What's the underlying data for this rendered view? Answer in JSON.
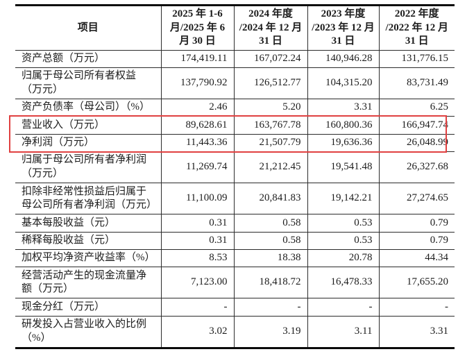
{
  "table": {
    "columns": [
      {
        "id": "item",
        "label": "项目"
      },
      {
        "id": "p2025h1",
        "label": "2025 年 1-6\n月/2025 年 6\n月 30 日"
      },
      {
        "id": "fy2024",
        "label": "2024 年度\n/2024 年 12 月\n31 日"
      },
      {
        "id": "fy2023",
        "label": "2023 年度\n/2023 年 12 月\n31 日"
      },
      {
        "id": "fy2022",
        "label": "2022 年度\n/2022 年 12 月\n31 日"
      }
    ],
    "rows": [
      {
        "item": "资产总额（万元）",
        "values": [
          "174,419.11",
          "167,072.24",
          "140,946.28",
          "131,776.15"
        ],
        "highlighted": false
      },
      {
        "item": "归属于母公司所有者权益（万元）",
        "values": [
          "137,790.92",
          "126,512.77",
          "104,315.20",
          "83,731.49"
        ],
        "highlighted": false
      },
      {
        "item": "资产负债率（母公司）（%）",
        "values": [
          "2.46",
          "5.20",
          "3.31",
          "6.25"
        ],
        "highlighted": false
      },
      {
        "item": "营业收入（万元）",
        "values": [
          "89,628.61",
          "163,767.78",
          "160,800.36",
          "166,947.74"
        ],
        "highlighted": true
      },
      {
        "item": "净利润（万元）",
        "values": [
          "11,443.36",
          "21,507.79",
          "19,636.36",
          "26,048.99"
        ],
        "highlighted": true
      },
      {
        "item": "归属于母公司所有者净利润（万元）",
        "values": [
          "11,269.74",
          "21,212.45",
          "19,541.48",
          "26,327.68"
        ],
        "highlighted": false
      },
      {
        "item": "扣除非经常性损益后归属于母公司所有者净利润（万元）",
        "values": [
          "11,100.09",
          "20,841.83",
          "19,142.21",
          "27,274.65"
        ],
        "highlighted": false
      },
      {
        "item": "基本每股收益（元）",
        "values": [
          "0.31",
          "0.58",
          "0.53",
          "0.79"
        ],
        "highlighted": false
      },
      {
        "item": "稀释每股收益（元）",
        "values": [
          "0.31",
          "0.58",
          "0.53",
          "0.79"
        ],
        "highlighted": false
      },
      {
        "item": "加权平均净资产收益率（%）",
        "values": [
          "8.53",
          "18.38",
          "20.78",
          "44.34"
        ],
        "highlighted": false
      },
      {
        "item": "经营活动产生的现金流量净额（万元）",
        "values": [
          "7,123.00",
          "18,418.72",
          "16,478.33",
          "17,655.20"
        ],
        "highlighted": false
      },
      {
        "item": "现金分红（万元）",
        "values": [
          "-",
          "-",
          "-",
          "-"
        ],
        "highlighted": false
      },
      {
        "item": "研发投入占营业收入的比例（%）",
        "values": [
          "3.02",
          "3.19",
          "3.11",
          "3.31"
        ],
        "highlighted": false
      }
    ]
  },
  "highlight": {
    "border_color": "#e04040"
  },
  "colors": {
    "background": "#ffffff",
    "text": "#1c1c1c",
    "grid_line": "#2b2b2b",
    "heavy_border": "#0a0a0a"
  }
}
